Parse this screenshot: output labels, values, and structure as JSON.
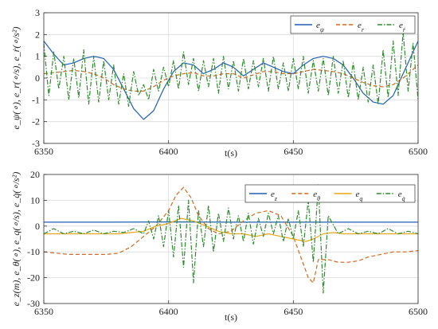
{
  "chart_data": [
    {
      "type": "line",
      "xlabel": "t(s)",
      "ylabel": "e_ψ(∘), e_r(∘/s), e_ṙ(∘/s²)",
      "xlim": [
        6350,
        6500
      ],
      "ylim": [
        -3,
        3
      ],
      "xticks": [
        "6350",
        "6400",
        "6450",
        "6500"
      ],
      "yticks": [
        "3",
        "2",
        "1",
        "0",
        "-1",
        "-2",
        "-3"
      ],
      "grid": true,
      "legend_position": "top-right",
      "series": [
        {
          "name": "e_ψ",
          "color": "#1f5fb4",
          "style": "solid",
          "x": [
            6350,
            6354,
            6358,
            6362,
            6366,
            6370,
            6374,
            6378,
            6382,
            6386,
            6390,
            6394,
            6398,
            6402,
            6406,
            6410,
            6414,
            6418,
            6422,
            6426,
            6430,
            6434,
            6438,
            6442,
            6446,
            6450,
            6454,
            6458,
            6462,
            6466,
            6470,
            6474,
            6478,
            6482,
            6486,
            6490,
            6494,
            6498,
            6500
          ],
          "y": [
            1.7,
            1.1,
            0.6,
            0.7,
            0.9,
            1.0,
            0.9,
            0.4,
            -0.5,
            -1.4,
            -1.9,
            -1.5,
            -0.5,
            0.3,
            0.7,
            0.6,
            0.2,
            0.4,
            0.7,
            0.5,
            0.1,
            0.4,
            0.7,
            0.5,
            0.3,
            0.2,
            0.6,
            0.9,
            1.0,
            0.9,
            0.6,
            0.0,
            -0.7,
            -1.1,
            -1.2,
            -0.8,
            0.2,
            1.2,
            1.7
          ]
        },
        {
          "name": "e_r",
          "color": "#d2691e",
          "style": "dashed",
          "x": [
            6350,
            6354,
            6358,
            6362,
            6366,
            6370,
            6374,
            6378,
            6382,
            6386,
            6390,
            6394,
            6398,
            6402,
            6406,
            6410,
            6414,
            6418,
            6422,
            6426,
            6430,
            6434,
            6438,
            6442,
            6446,
            6450,
            6454,
            6458,
            6462,
            6466,
            6470,
            6474,
            6478,
            6482,
            6486,
            6490,
            6494,
            6498,
            6500
          ],
          "y": [
            0.2,
            0.25,
            0.3,
            0.35,
            0.3,
            0.2,
            0.0,
            -0.3,
            -0.5,
            -0.6,
            -0.6,
            -0.4,
            -0.1,
            0.1,
            0.2,
            0.25,
            0.1,
            0.1,
            0.2,
            0.2,
            0.0,
            0.15,
            0.3,
            0.3,
            0.2,
            0.2,
            0.3,
            0.4,
            0.35,
            0.3,
            0.2,
            0.0,
            -0.2,
            -0.35,
            -0.4,
            -0.3,
            0.0,
            0.4,
            0.6
          ]
        },
        {
          "name": "e_ṙ",
          "color": "#2e8b2e",
          "style": "dashdot",
          "x": [
            6350,
            6352,
            6354,
            6356,
            6358,
            6360,
            6362,
            6364,
            6366,
            6368,
            6370,
            6372,
            6374,
            6376,
            6378,
            6380,
            6382,
            6384,
            6386,
            6388,
            6390,
            6392,
            6394,
            6396,
            6398,
            6400,
            6402,
            6404,
            6406,
            6408,
            6410,
            6412,
            6414,
            6416,
            6418,
            6420,
            6422,
            6424,
            6426,
            6428,
            6430,
            6432,
            6434,
            6436,
            6438,
            6440,
            6442,
            6444,
            6446,
            6448,
            6450,
            6452,
            6454,
            6456,
            6458,
            6460,
            6462,
            6464,
            6466,
            6468,
            6470,
            6472,
            6474,
            6476,
            6478,
            6480,
            6482,
            6484,
            6486,
            6488,
            6490,
            6492,
            6494,
            6496,
            6498,
            6500
          ],
          "y": [
            1.6,
            -0.8,
            1.2,
            -0.5,
            1.0,
            -1.0,
            0.9,
            -0.9,
            1.3,
            -1.2,
            1.0,
            -1.1,
            0.8,
            -1.0,
            0.6,
            -1.2,
            0.2,
            -1.3,
            0.3,
            -0.8,
            -0.3,
            -1.0,
            0.4,
            -0.6,
            0.5,
            -0.4,
            0.8,
            -0.5,
            1.2,
            -0.3,
            0.9,
            -0.6,
            0.8,
            -0.4,
            0.9,
            -0.7,
            1.0,
            -0.5,
            0.8,
            -0.6,
            0.9,
            -0.5,
            0.8,
            -0.4,
            0.9,
            -0.6,
            1.0,
            -0.5,
            0.7,
            -0.6,
            0.9,
            -0.5,
            1.0,
            -0.7,
            0.8,
            -0.6,
            0.9,
            -0.8,
            1.0,
            -0.7,
            0.8,
            -0.9,
            0.7,
            -1.0,
            0.5,
            -1.1,
            0.6,
            -1.2,
            1.3,
            -0.9,
            1.7,
            -0.8,
            2.1,
            -0.6,
            1.6,
            -1.0
          ]
        }
      ]
    },
    {
      "type": "line",
      "xlabel": "t(s)",
      "ylabel": "e_z(m), e_θ(∘), e_q(∘/s), e_q̇(∘/s²)",
      "xlim": [
        6350,
        6500
      ],
      "ylim": [
        -30,
        20
      ],
      "xticks": [
        "6350",
        "6400",
        "6450",
        "6500"
      ],
      "yticks": [
        "20",
        "10",
        "0",
        "-10",
        "-20",
        "-30"
      ],
      "grid": true,
      "legend_position": "top-right",
      "series": [
        {
          "name": "e_z",
          "color": "#1f5fb4",
          "style": "solid",
          "x": [
            6350,
            6375,
            6400,
            6425,
            6450,
            6475,
            6500
          ],
          "y": [
            1.5,
            1.5,
            1.6,
            1.5,
            1.5,
            1.5,
            1.5
          ]
        },
        {
          "name": "e_θ",
          "color": "#d2691e",
          "style": "dashed",
          "x": [
            6350,
            6355,
            6360,
            6365,
            6370,
            6375,
            6380,
            6385,
            6390,
            6395,
            6400,
            6403,
            6406,
            6409,
            6412,
            6416,
            6420,
            6425,
            6430,
            6435,
            6440,
            6445,
            6450,
            6453,
            6456,
            6458,
            6460,
            6464,
            6468,
            6472,
            6476,
            6480,
            6485,
            6490,
            6495,
            6500
          ],
          "y": [
            -10,
            -10.5,
            -11,
            -11,
            -11,
            -11,
            -10.5,
            -8,
            -4,
            0,
            6,
            12,
            15,
            11,
            4,
            -1,
            -3,
            -2,
            2,
            5,
            6,
            4,
            -4,
            -12,
            -20,
            -22,
            -13,
            -13,
            -14,
            -14,
            -13.5,
            -12,
            -11,
            -10,
            -10,
            -9.5
          ]
        },
        {
          "name": "e_q",
          "color": "#e6a817",
          "style": "solid",
          "x": [
            6350,
            6360,
            6370,
            6380,
            6385,
            6390,
            6395,
            6400,
            6405,
            6410,
            6415,
            6420,
            6425,
            6430,
            6435,
            6440,
            6445,
            6450,
            6455,
            6458,
            6462,
            6466,
            6470,
            6480,
            6490,
            6500
          ],
          "y": [
            -3,
            -3,
            -3,
            -3,
            -2.5,
            -2,
            0,
            1,
            3,
            2,
            0,
            -2,
            -3,
            -3,
            -4,
            -3,
            -4,
            -5,
            -6,
            -5,
            -3,
            -2.5,
            -3,
            -3,
            -3,
            -3
          ]
        },
        {
          "name": "e_q̇",
          "color": "#2e8b2e",
          "style": "dashdot",
          "x": [
            6350,
            6354,
            6358,
            6362,
            6366,
            6370,
            6374,
            6378,
            6382,
            6386,
            6390,
            6392,
            6394,
            6396,
            6398,
            6400,
            6402,
            6404,
            6406,
            6408,
            6410,
            6412,
            6414,
            6416,
            6418,
            6420,
            6422,
            6424,
            6426,
            6428,
            6430,
            6432,
            6434,
            6436,
            6438,
            6440,
            6442,
            6444,
            6446,
            6448,
            6450,
            6452,
            6454,
            6456,
            6458,
            6460,
            6462,
            6464,
            6468,
            6472,
            6476,
            6480,
            6484,
            6488,
            6492,
            6496,
            6500
          ],
          "y": [
            -3,
            -1,
            -3,
            -2,
            -3,
            -1.5,
            -3,
            -2,
            -2.5,
            -1,
            -3,
            2,
            -5,
            4,
            -8,
            6,
            -12,
            8,
            -16,
            10,
            -22,
            6,
            -8,
            8,
            -10,
            5,
            -6,
            7,
            -5,
            4,
            -6,
            5,
            -7,
            3,
            -4,
            5,
            -3,
            4,
            -6,
            3,
            -5,
            6,
            -8,
            10,
            -14,
            16,
            -26,
            4,
            -3,
            -1,
            -3,
            -2,
            -3,
            -1,
            -3,
            -2,
            -3
          ]
        }
      ]
    }
  ]
}
